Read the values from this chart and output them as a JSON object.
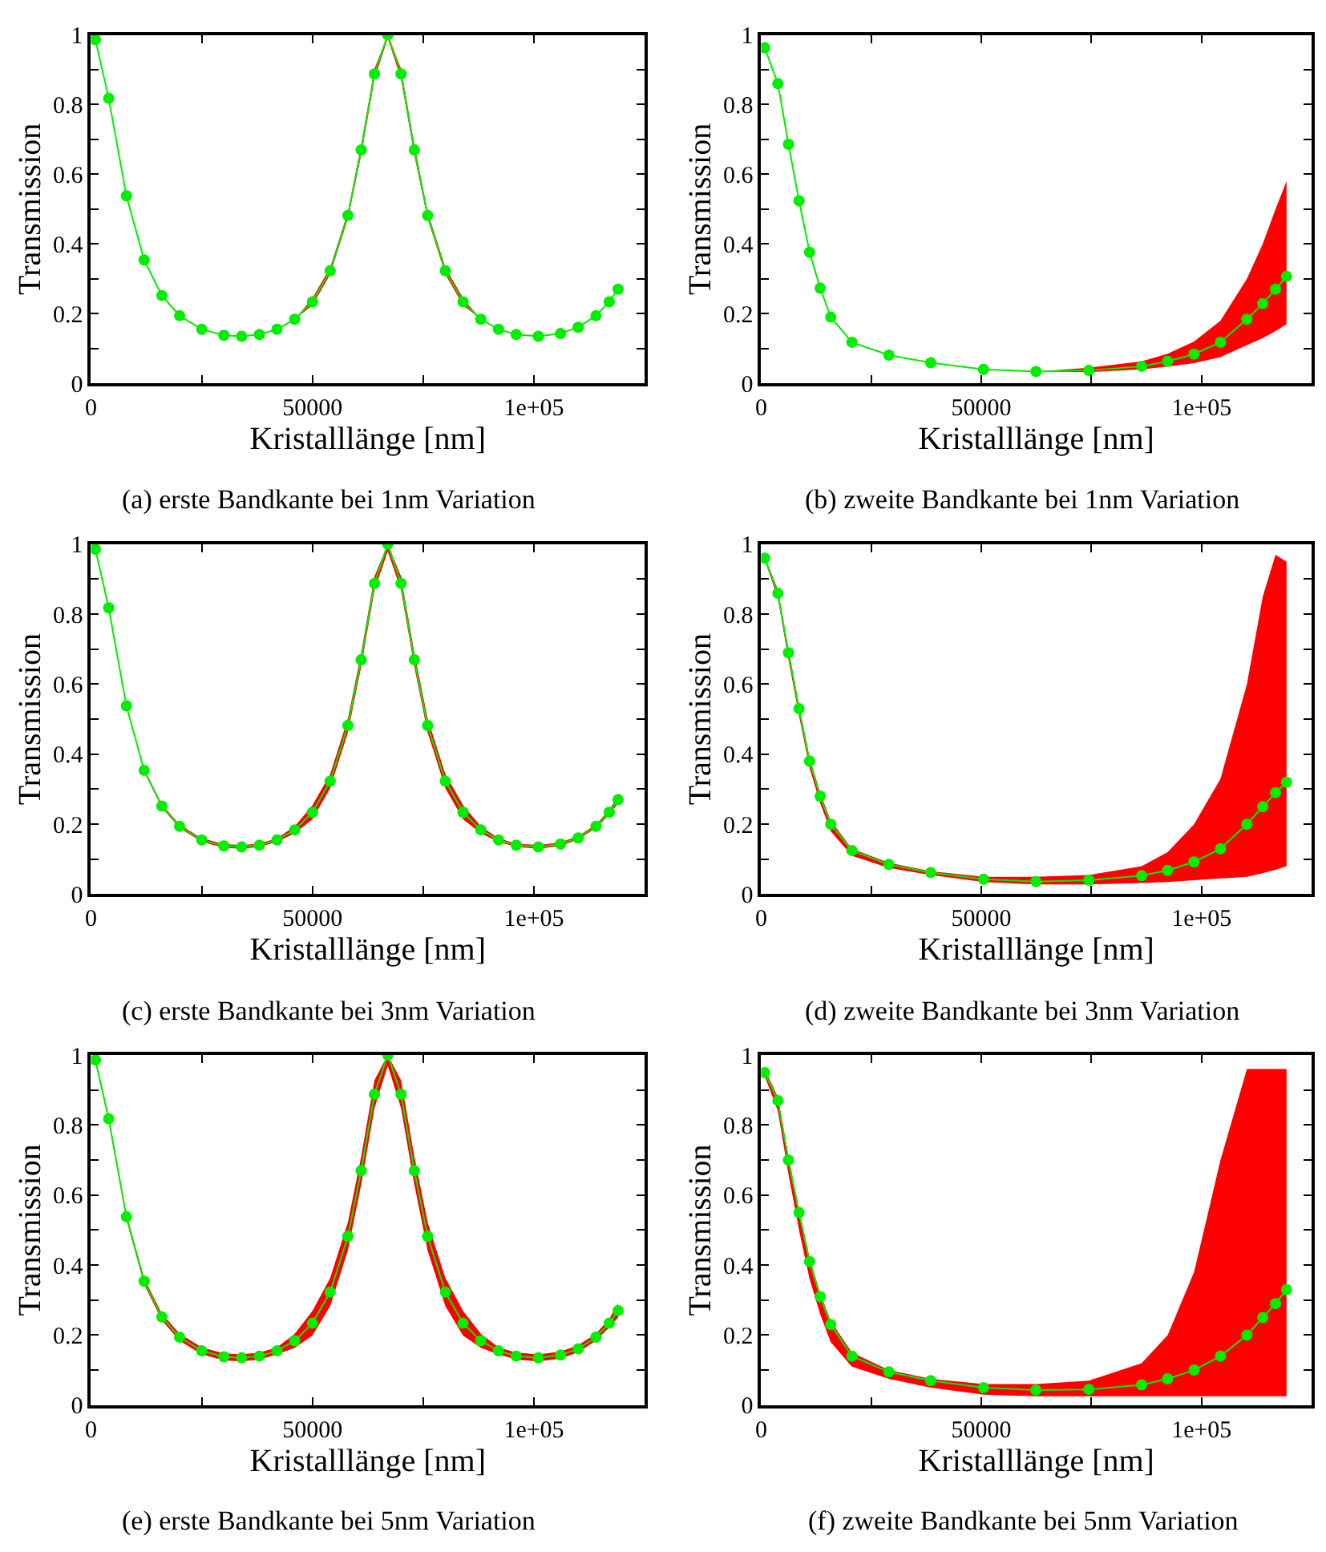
{
  "chart_data": [
    {
      "type": "line",
      "xlabel": "Kristalllänge [nm]",
      "ylabel": "Transmission",
      "annotations": [
        "(a) erste Bandkante bei 1nm Variation"
      ],
      "marker": "circle",
      "line_style": "solid",
      "xlim": [
        0,
        125000
      ],
      "ylim": [
        0,
        1
      ],
      "xticks": [
        0,
        {
          "value": 25000,
          "label": null
        },
        50000,
        {
          "value": 75000,
          "label": null
        },
        {
          "value": 100000,
          "label": "1e+05"
        }
      ],
      "yticks": [
        0,
        {
          "value": 0.1,
          "label": null
        },
        0.2,
        {
          "value": 0.3,
          "label": null
        },
        0.4,
        {
          "value": 0.5,
          "label": null
        },
        0.6,
        {
          "value": 0.7,
          "label": null
        },
        0.8,
        {
          "value": 0.9,
          "label": null
        },
        1
      ],
      "x": [
        1000,
        4000,
        8000,
        12000,
        16000,
        20000,
        25000,
        30000,
        34000,
        38000,
        42000,
        46000,
        50000,
        54000,
        58000,
        61000,
        64000,
        67000,
        70000,
        73000,
        76000,
        80000,
        84000,
        88000,
        92000,
        96000,
        101000,
        106000,
        110000,
        114000,
        117000,
        119000
      ],
      "series": [
        {
          "color": "#00ee00",
          "values": [
            0.986,
            0.818,
            0.538,
            0.354,
            0.252,
            0.194,
            0.155,
            0.138,
            0.135,
            0.14,
            0.155,
            0.184,
            0.234,
            0.323,
            0.482,
            0.67,
            0.888,
            1.0,
            0.888,
            0.67,
            0.482,
            0.323,
            0.234,
            0.184,
            0.155,
            0.14,
            0.135,
            0.143,
            0.161,
            0.194,
            0.234,
            0.27
          ],
          "lower": [
            0.986,
            0.818,
            0.538,
            0.354,
            0.252,
            0.194,
            0.155,
            0.138,
            0.135,
            0.14,
            0.155,
            0.184,
            0.224,
            0.313,
            0.472,
            0.655,
            0.873,
            0.99,
            0.873,
            0.655,
            0.472,
            0.313,
            0.224,
            0.184,
            0.155,
            0.14,
            0.135,
            0.143,
            0.161,
            0.194,
            0.234,
            0.27
          ],
          "upper": [
            0.986,
            0.818,
            0.538,
            0.354,
            0.252,
            0.194,
            0.155,
            0.138,
            0.135,
            0.14,
            0.155,
            0.184,
            0.244,
            0.333,
            0.492,
            0.685,
            0.903,
            1.0,
            0.903,
            0.685,
            0.492,
            0.333,
            0.244,
            0.184,
            0.155,
            0.14,
            0.135,
            0.143,
            0.161,
            0.194,
            0.234,
            0.27
          ]
        }
      ]
    },
    {
      "type": "line",
      "xlabel": "Kristalllänge [nm]",
      "ylabel": "Transmission",
      "annotations": [
        "(b) zweite Bandkante bei 1nm Variation"
      ],
      "marker": "circle",
      "line_style": "solid",
      "xlim": [
        0,
        125000
      ],
      "ylim": [
        0,
        1
      ],
      "xticks": [
        0,
        {
          "value": 25000,
          "label": null
        },
        50000,
        {
          "value": 75000,
          "label": null
        },
        {
          "value": 100000,
          "label": "1e+05"
        }
      ],
      "yticks": [
        0,
        {
          "value": 0.1,
          "label": null
        },
        0.2,
        {
          "value": 0.3,
          "label": null
        },
        0.4,
        {
          "value": 0.5,
          "label": null
        },
        0.6,
        {
          "value": 0.7,
          "label": null
        },
        0.8,
        {
          "value": 0.9,
          "label": null
        },
        1
      ],
      "x": [
        800,
        3800,
        6200,
        8600,
        11000,
        13400,
        15800,
        20600,
        29000,
        38500,
        50500,
        62400,
        74400,
        86400,
        92300,
        98300,
        104300,
        110300,
        113900,
        116800,
        119300
      ],
      "series": [
        {
          "color": "#00ee00",
          "values": [
            0.963,
            0.86,
            0.686,
            0.524,
            0.376,
            0.273,
            0.19,
            0.118,
            0.081,
            0.059,
            0.04,
            0.034,
            0.037,
            0.049,
            0.063,
            0.084,
            0.118,
            0.184,
            0.229,
            0.27,
            0.307
          ],
          "lower": [
            0.963,
            0.86,
            0.686,
            0.524,
            0.376,
            0.273,
            0.19,
            0.118,
            0.081,
            0.059,
            0.04,
            0.034,
            0.032,
            0.04,
            0.048,
            0.058,
            0.075,
            0.11,
            0.13,
            0.15,
            0.17
          ],
          "upper": [
            0.963,
            0.86,
            0.686,
            0.524,
            0.376,
            0.273,
            0.19,
            0.118,
            0.081,
            0.059,
            0.04,
            0.034,
            0.045,
            0.063,
            0.085,
            0.12,
            0.18,
            0.3,
            0.4,
            0.5,
            0.58
          ]
        }
      ]
    },
    {
      "type": "line",
      "xlabel": "Kristalllänge [nm]",
      "ylabel": "Transmission",
      "annotations": [
        "(c) erste Bandkante bei 3nm Variation"
      ],
      "marker": "circle",
      "line_style": "solid",
      "xlim": [
        0,
        125000
      ],
      "ylim": [
        0,
        1
      ],
      "xticks": [
        0,
        {
          "value": 25000,
          "label": null
        },
        50000,
        {
          "value": 75000,
          "label": null
        },
        {
          "value": 100000,
          "label": "1e+05"
        }
      ],
      "yticks": [
        0,
        {
          "value": 0.1,
          "label": null
        },
        0.2,
        {
          "value": 0.3,
          "label": null
        },
        0.4,
        {
          "value": 0.5,
          "label": null
        },
        0.6,
        {
          "value": 0.7,
          "label": null
        },
        0.8,
        {
          "value": 0.9,
          "label": null
        },
        1
      ],
      "x": [
        1000,
        4000,
        8000,
        12000,
        16000,
        20000,
        25000,
        30000,
        34000,
        38000,
        42000,
        46000,
        50000,
        54000,
        58000,
        61000,
        64000,
        67000,
        70000,
        73000,
        76000,
        80000,
        84000,
        88000,
        92000,
        96000,
        101000,
        106000,
        110000,
        114000,
        117000,
        119000
      ],
      "series": [
        {
          "color": "#00ee00",
          "values": [
            0.986,
            0.818,
            0.538,
            0.354,
            0.252,
            0.194,
            0.155,
            0.138,
            0.135,
            0.14,
            0.155,
            0.184,
            0.234,
            0.323,
            0.482,
            0.67,
            0.888,
            1.0,
            0.888,
            0.67,
            0.482,
            0.323,
            0.234,
            0.184,
            0.155,
            0.14,
            0.135,
            0.143,
            0.161,
            0.194,
            0.234,
            0.27
          ],
          "lower": [
            0.986,
            0.818,
            0.538,
            0.35,
            0.247,
            0.189,
            0.15,
            0.133,
            0.13,
            0.135,
            0.15,
            0.174,
            0.214,
            0.303,
            0.462,
            0.65,
            0.868,
            0.98,
            0.868,
            0.65,
            0.462,
            0.303,
            0.214,
            0.174,
            0.15,
            0.135,
            0.13,
            0.138,
            0.156,
            0.189,
            0.227,
            0.26
          ],
          "upper": [
            0.986,
            0.818,
            0.538,
            0.358,
            0.257,
            0.199,
            0.16,
            0.143,
            0.14,
            0.145,
            0.16,
            0.194,
            0.254,
            0.343,
            0.502,
            0.69,
            0.908,
            1.0,
            0.908,
            0.69,
            0.502,
            0.343,
            0.254,
            0.194,
            0.16,
            0.145,
            0.14,
            0.148,
            0.166,
            0.199,
            0.241,
            0.28
          ]
        }
      ]
    },
    {
      "type": "line",
      "xlabel": "Kristalllänge [nm]",
      "ylabel": "Transmission",
      "annotations": [
        "(d) zweite Bandkante bei 3nm Variation"
      ],
      "marker": "circle",
      "line_style": "solid",
      "xlim": [
        0,
        125000
      ],
      "ylim": [
        0,
        1
      ],
      "xticks": [
        0,
        {
          "value": 25000,
          "label": null
        },
        50000,
        {
          "value": 75000,
          "label": null
        },
        {
          "value": 100000,
          "label": "1e+05"
        }
      ],
      "yticks": [
        0,
        {
          "value": 0.1,
          "label": null
        },
        0.2,
        {
          "value": 0.3,
          "label": null
        },
        0.4,
        {
          "value": 0.5,
          "label": null
        },
        0.6,
        {
          "value": 0.7,
          "label": null
        },
        0.8,
        {
          "value": 0.9,
          "label": null
        },
        1
      ],
      "x": [
        800,
        3800,
        6200,
        8600,
        11000,
        13400,
        15800,
        20600,
        29000,
        38500,
        50500,
        62400,
        74400,
        86400,
        92300,
        98300,
        104300,
        110300,
        113900,
        116800,
        119300
      ],
      "series": [
        {
          "color": "#00ee00",
          "values": [
            0.96,
            0.86,
            0.69,
            0.53,
            0.38,
            0.28,
            0.2,
            0.125,
            0.085,
            0.062,
            0.043,
            0.036,
            0.04,
            0.053,
            0.068,
            0.092,
            0.13,
            0.2,
            0.25,
            0.29,
            0.32
          ],
          "lower": [
            0.955,
            0.845,
            0.67,
            0.51,
            0.36,
            0.26,
            0.18,
            0.11,
            0.075,
            0.055,
            0.035,
            0.028,
            0.028,
            0.032,
            0.035,
            0.04,
            0.045,
            0.05,
            0.06,
            0.07,
            0.08
          ],
          "upper": [
            0.965,
            0.87,
            0.7,
            0.54,
            0.39,
            0.29,
            0.21,
            0.13,
            0.09,
            0.066,
            0.05,
            0.05,
            0.055,
            0.08,
            0.12,
            0.2,
            0.33,
            0.6,
            0.85,
            0.97,
            0.95
          ]
        }
      ]
    },
    {
      "type": "line",
      "xlabel": "Kristalllänge [nm]",
      "ylabel": "Transmission",
      "annotations": [
        "(e) erste Bandkante bei 5nm Variation"
      ],
      "marker": "circle",
      "line_style": "solid",
      "xlim": [
        0,
        125000
      ],
      "ylim": [
        0,
        1
      ],
      "xticks": [
        0,
        {
          "value": 25000,
          "label": null
        },
        50000,
        {
          "value": 75000,
          "label": null
        },
        {
          "value": 100000,
          "label": "1e+05"
        }
      ],
      "yticks": [
        0,
        {
          "value": 0.1,
          "label": null
        },
        0.2,
        {
          "value": 0.3,
          "label": null
        },
        0.4,
        {
          "value": 0.5,
          "label": null
        },
        0.6,
        {
          "value": 0.7,
          "label": null
        },
        0.8,
        {
          "value": 0.9,
          "label": null
        },
        1
      ],
      "x": [
        1000,
        4000,
        8000,
        12000,
        16000,
        20000,
        25000,
        30000,
        34000,
        38000,
        42000,
        46000,
        50000,
        54000,
        58000,
        61000,
        64000,
        67000,
        70000,
        73000,
        76000,
        80000,
        84000,
        88000,
        92000,
        96000,
        101000,
        106000,
        110000,
        114000,
        117000,
        119000
      ],
      "series": [
        {
          "color": "#00ee00",
          "values": [
            0.986,
            0.818,
            0.538,
            0.354,
            0.252,
            0.194,
            0.155,
            0.138,
            0.135,
            0.14,
            0.155,
            0.184,
            0.234,
            0.323,
            0.482,
            0.67,
            0.888,
            1.0,
            0.888,
            0.67,
            0.482,
            0.323,
            0.234,
            0.184,
            0.155,
            0.14,
            0.135,
            0.143,
            0.161,
            0.194,
            0.234,
            0.27
          ],
          "lower": [
            0.98,
            0.81,
            0.53,
            0.345,
            0.242,
            0.184,
            0.145,
            0.128,
            0.125,
            0.13,
            0.145,
            0.164,
            0.199,
            0.283,
            0.442,
            0.63,
            0.848,
            0.97,
            0.848,
            0.63,
            0.442,
            0.283,
            0.199,
            0.164,
            0.145,
            0.13,
            0.125,
            0.133,
            0.151,
            0.184,
            0.222,
            0.25
          ],
          "upper": [
            0.99,
            0.825,
            0.545,
            0.363,
            0.262,
            0.204,
            0.165,
            0.148,
            0.145,
            0.15,
            0.165,
            0.204,
            0.269,
            0.363,
            0.522,
            0.71,
            0.928,
            1.0,
            0.928,
            0.71,
            0.522,
            0.363,
            0.269,
            0.204,
            0.165,
            0.15,
            0.145,
            0.153,
            0.171,
            0.204,
            0.246,
            0.29
          ]
        }
      ]
    },
    {
      "type": "line",
      "xlabel": "Kristalllänge [nm]",
      "ylabel": "Transmission",
      "annotations": [
        "(f) zweite Bandkante bei 5nm Variation"
      ],
      "marker": "circle",
      "line_style": "solid",
      "xlim": [
        0,
        125000
      ],
      "ylim": [
        0,
        1
      ],
      "xticks": [
        0,
        {
          "value": 25000,
          "label": null
        },
        50000,
        {
          "value": 75000,
          "label": null
        },
        {
          "value": 100000,
          "label": "1e+05"
        }
      ],
      "yticks": [
        0,
        {
          "value": 0.1,
          "label": null
        },
        0.2,
        {
          "value": 0.3,
          "label": null
        },
        0.4,
        {
          "value": 0.5,
          "label": null
        },
        0.6,
        {
          "value": 0.7,
          "label": null
        },
        0.8,
        {
          "value": 0.9,
          "label": null
        },
        1
      ],
      "x": [
        800,
        3800,
        6200,
        8600,
        11000,
        13400,
        15800,
        20600,
        29000,
        38500,
        50500,
        62400,
        74400,
        86400,
        92300,
        98300,
        104300,
        110300,
        113900,
        116800,
        119300
      ],
      "series": [
        {
          "color": "#00ee00",
          "values": [
            0.95,
            0.87,
            0.7,
            0.55,
            0.41,
            0.31,
            0.23,
            0.14,
            0.095,
            0.07,
            0.05,
            0.043,
            0.045,
            0.058,
            0.075,
            0.1,
            0.14,
            0.2,
            0.25,
            0.29,
            0.33
          ],
          "lower": [
            0.94,
            0.84,
            0.66,
            0.5,
            0.36,
            0.26,
            0.18,
            0.11,
            0.075,
            0.05,
            0.03,
            0.025,
            0.025,
            0.025,
            0.025,
            0.025,
            0.025,
            0.025,
            0.025,
            0.025,
            0.025
          ],
          "upper": [
            0.96,
            0.88,
            0.71,
            0.56,
            0.42,
            0.32,
            0.24,
            0.15,
            0.1,
            0.075,
            0.06,
            0.06,
            0.07,
            0.12,
            0.2,
            0.38,
            0.7,
            0.96,
            0.96,
            0.96,
            0.96
          ]
        }
      ]
    }
  ]
}
